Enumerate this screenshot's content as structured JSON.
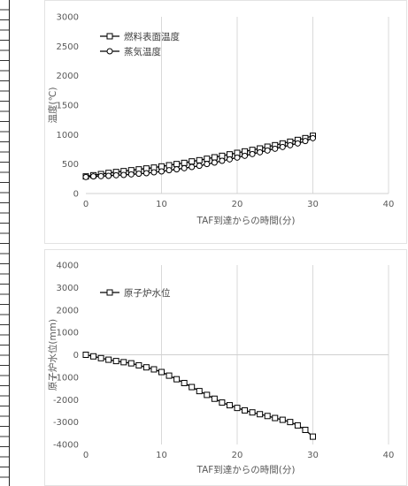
{
  "chart_data": [
    {
      "type": "line",
      "xlabel": "TAF到達からの時間(分)",
      "ylabel": "温度(℃)",
      "xlim": [
        0,
        40
      ],
      "ylim": [
        0,
        3000
      ],
      "xticks": [
        "0",
        "10",
        "20",
        "30",
        "40"
      ],
      "yticks": [
        "0",
        "500",
        "1000",
        "1500",
        "2000",
        "2500",
        "3000"
      ],
      "grid": "vertical",
      "legend": "top-left",
      "series": [
        {
          "name": "燃料表面温度",
          "marker": "square",
          "color": "#000000",
          "x": [
            0,
            1,
            2,
            3,
            4,
            5,
            6,
            7,
            8,
            9,
            10,
            11,
            12,
            13,
            14,
            15,
            16,
            17,
            18,
            19,
            20,
            21,
            22,
            23,
            24,
            25,
            26,
            27,
            28,
            29,
            30
          ],
          "y": [
            290,
            310,
            330,
            350,
            365,
            380,
            395,
            410,
            425,
            440,
            460,
            480,
            500,
            520,
            545,
            565,
            590,
            615,
            640,
            665,
            690,
            715,
            740,
            765,
            795,
            820,
            850,
            880,
            910,
            940,
            980
          ]
        },
        {
          "name": "蒸気温度",
          "marker": "circle",
          "color": "#000000",
          "x": [
            0,
            1,
            2,
            3,
            4,
            5,
            6,
            7,
            8,
            9,
            10,
            11,
            12,
            13,
            14,
            15,
            16,
            17,
            18,
            19,
            20,
            21,
            22,
            23,
            24,
            25,
            26,
            27,
            28,
            29,
            30
          ],
          "y": [
            280,
            290,
            295,
            300,
            310,
            315,
            325,
            335,
            345,
            360,
            375,
            395,
            410,
            430,
            450,
            470,
            500,
            525,
            555,
            580,
            610,
            640,
            670,
            700,
            730,
            760,
            790,
            820,
            850,
            890,
            940
          ]
        }
      ]
    },
    {
      "type": "line",
      "xlabel": "TAF到達からの時間(分)",
      "ylabel": "原子炉水位(mm)",
      "xlim": [
        0,
        40
      ],
      "ylim": [
        -4000,
        4000
      ],
      "xticks": [
        "0",
        "10",
        "20",
        "30",
        "40"
      ],
      "yticks": [
        "-4000",
        "-3000",
        "-2000",
        "-1000",
        "0",
        "1000",
        "2000",
        "3000",
        "4000"
      ],
      "grid": "vertical",
      "legend": "top-left",
      "series": [
        {
          "name": "原子炉水位",
          "marker": "square",
          "color": "#000000",
          "x": [
            0,
            1,
            2,
            3,
            4,
            5,
            6,
            7,
            8,
            9,
            10,
            11,
            12,
            13,
            14,
            15,
            16,
            17,
            18,
            19,
            20,
            21,
            22,
            23,
            24,
            25,
            26,
            27,
            28,
            29,
            30
          ],
          "y": [
            0,
            -70,
            -150,
            -220,
            -280,
            -330,
            -380,
            -470,
            -560,
            -650,
            -770,
            -930,
            -1090,
            -1260,
            -1440,
            -1620,
            -1790,
            -1960,
            -2130,
            -2250,
            -2370,
            -2480,
            -2570,
            -2650,
            -2730,
            -2820,
            -2900,
            -3000,
            -3150,
            -3350,
            -3650
          ]
        }
      ]
    }
  ]
}
